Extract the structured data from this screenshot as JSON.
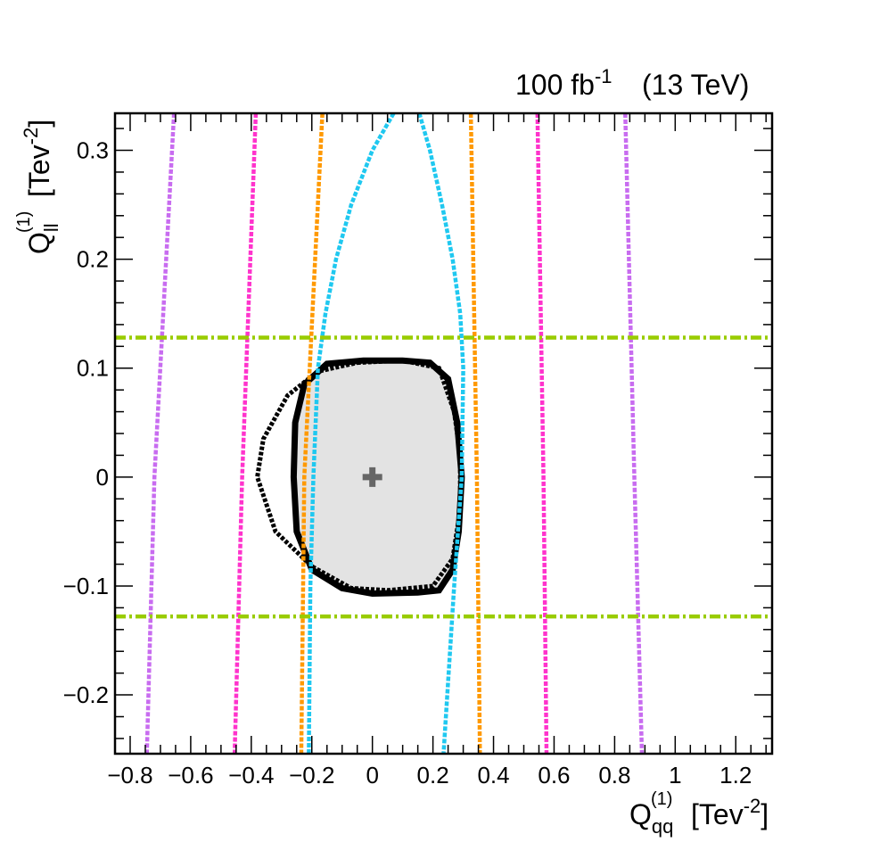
{
  "chart_data": {
    "type": "scatter",
    "header": {
      "lumi": "100 fb",
      "lumi_exp": "-1",
      "energy": "(13 TeV)"
    },
    "xlabel": {
      "main": "Q",
      "sub": "qq",
      "sup": "(1)",
      "unit_pre": "[Tev",
      "unit_exp": "-2",
      "unit_post": "]"
    },
    "ylabel": {
      "main": "Q",
      "sub": "ll",
      "sup": "(1)",
      "unit_pre": "[Tev",
      "unit_exp": "-2",
      "unit_post": "]"
    },
    "xlim": [
      -0.85,
      1.32
    ],
    "ylim": [
      -0.254,
      0.334
    ],
    "xticks": [
      {
        "v": -0.8,
        "label": "−0.8"
      },
      {
        "v": -0.6,
        "label": "−0.6"
      },
      {
        "v": -0.4,
        "label": "−0.4"
      },
      {
        "v": -0.2,
        "label": "−0.2"
      },
      {
        "v": 0,
        "label": "0"
      },
      {
        "v": 0.2,
        "label": "0.2"
      },
      {
        "v": 0.4,
        "label": "0.4"
      },
      {
        "v": 0.6,
        "label": "0.6"
      },
      {
        "v": 0.8,
        "label": "0.8"
      },
      {
        "v": 1,
        "label": "1"
      },
      {
        "v": 1.2,
        "label": "1.2"
      }
    ],
    "yticks": [
      {
        "v": -0.2,
        "label": "−0.2"
      },
      {
        "v": -0.1,
        "label": "−0.1"
      },
      {
        "v": 0,
        "label": "0"
      },
      {
        "v": 0.1,
        "label": "0.1"
      },
      {
        "v": 0.2,
        "label": "0.2"
      },
      {
        "v": 0.3,
        "label": "0.3"
      }
    ],
    "best_fit": {
      "x": 0.0,
      "y": 0.0,
      "color": "#666666"
    },
    "filled_region": {
      "color": "#e3e3e3",
      "edge": "#000000",
      "points": [
        [
          -0.03,
          0.107
        ],
        [
          0.1,
          0.107
        ],
        [
          0.19,
          0.105
        ],
        [
          0.25,
          0.09
        ],
        [
          0.28,
          0.05
        ],
        [
          0.295,
          0.0
        ],
        [
          0.285,
          -0.05
        ],
        [
          0.265,
          -0.085
        ],
        [
          0.22,
          -0.104
        ],
        [
          0.15,
          -0.106
        ],
        [
          0.0,
          -0.107
        ],
        [
          -0.1,
          -0.102
        ],
        [
          -0.2,
          -0.085
        ],
        [
          -0.25,
          -0.05
        ],
        [
          -0.26,
          0.0
        ],
        [
          -0.255,
          0.05
        ],
        [
          -0.225,
          0.085
        ],
        [
          -0.15,
          0.104
        ]
      ]
    },
    "outer_contour": {
      "color": "#000000",
      "points": [
        [
          -0.05,
          0.105
        ],
        [
          0.1,
          0.107
        ],
        [
          0.22,
          0.1
        ],
        [
          0.27,
          0.06
        ],
        [
          0.29,
          0.02
        ],
        [
          0.29,
          -0.03
        ],
        [
          0.265,
          -0.075
        ],
        [
          0.2,
          -0.1
        ],
        [
          0.05,
          -0.104
        ],
        [
          -0.07,
          -0.102
        ],
        [
          -0.2,
          -0.082
        ],
        [
          -0.32,
          -0.05
        ],
        [
          -0.38,
          0.0
        ],
        [
          -0.36,
          0.035
        ],
        [
          -0.28,
          0.075
        ],
        [
          -0.18,
          0.097
        ]
      ]
    },
    "curves": [
      {
        "color": "#c86cf0",
        "x": [
          -0.655,
          -0.72,
          -0.745
        ],
        "y": [
          0.334,
          0.0,
          -0.254
        ]
      },
      {
        "color": "#c86cf0",
        "x": [
          0.835,
          0.865,
          0.89
        ],
        "y": [
          0.334,
          0.0,
          -0.254
        ]
      },
      {
        "color": "#ff33cc",
        "x": [
          -0.385,
          -0.43,
          -0.455
        ],
        "y": [
          0.334,
          0.0,
          -0.254
        ]
      },
      {
        "color": "#ff33cc",
        "x": [
          0.545,
          0.565,
          0.575
        ],
        "y": [
          0.334,
          0.0,
          -0.254
        ]
      },
      {
        "color": "#ff9900",
        "x": [
          -0.165,
          -0.225,
          -0.235
        ],
        "y": [
          0.334,
          0.0,
          -0.254
        ]
      },
      {
        "color": "#ff9900",
        "x": [
          0.325,
          0.345,
          0.355
        ],
        "y": [
          0.334,
          0.0,
          -0.254
        ]
      },
      {
        "color": "#1fc8f0",
        "x": [
          0.07,
          0.0,
          -0.07,
          -0.12,
          -0.155,
          -0.18,
          -0.195,
          -0.205,
          -0.21
        ],
        "y": [
          0.334,
          0.3,
          0.25,
          0.2,
          0.15,
          0.1,
          0.0,
          -0.1,
          -0.254
        ]
      },
      {
        "color": "#1fc8f0",
        "x": [
          0.155,
          0.19,
          0.23,
          0.265,
          0.29,
          0.3,
          0.295,
          0.27,
          0.235
        ],
        "y": [
          0.334,
          0.3,
          0.25,
          0.2,
          0.15,
          0.1,
          0.0,
          -0.1,
          -0.254
        ]
      },
      {
        "color": "#99cc00",
        "x": [
          -0.85,
          1.32
        ],
        "y": [
          0.128,
          0.128
        ],
        "dash": "dashdot"
      },
      {
        "color": "#99cc00",
        "x": [
          -0.85,
          1.32
        ],
        "y": [
          -0.128,
          -0.128
        ],
        "dash": "dashdot"
      }
    ]
  }
}
